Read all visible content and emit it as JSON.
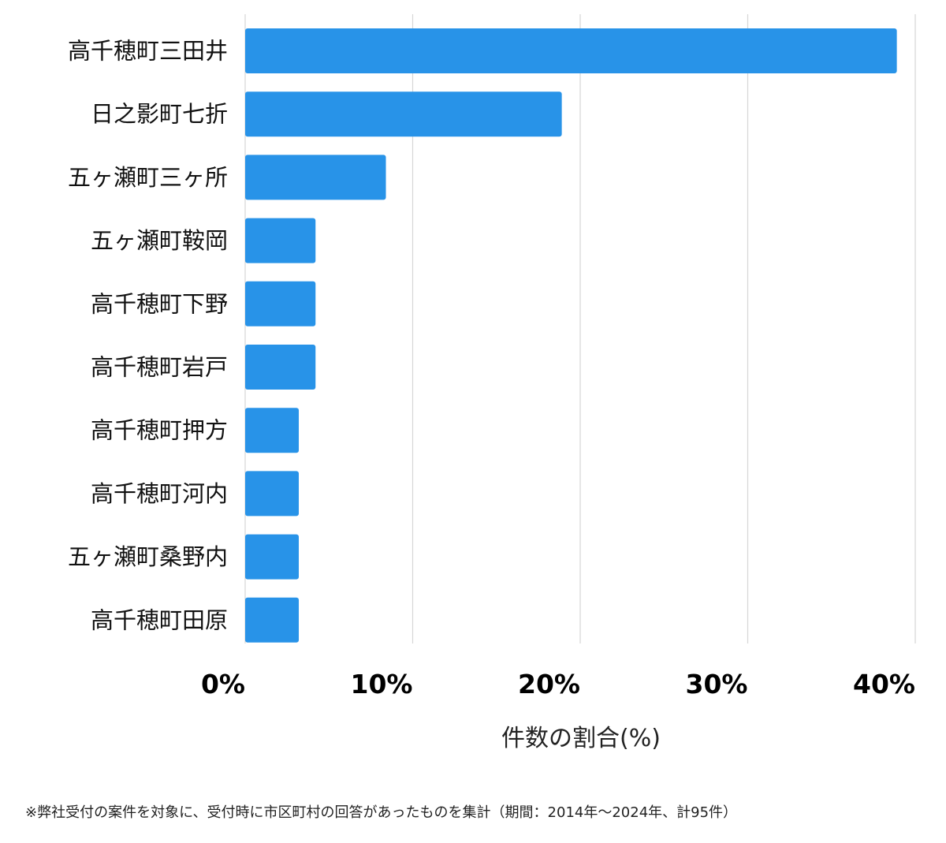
{
  "colors": {
    "bar": "#2893e8",
    "grid": "#d6d6d6",
    "text": "#111111"
  },
  "chart_data": {
    "type": "bar",
    "orientation": "horizontal",
    "categories": [
      "高千穂町三田井",
      "日之影町七折",
      "五ヶ瀬町三ヶ所",
      "五ヶ瀬町鞍岡",
      "高千穂町下野",
      "高千穂町岩戸",
      "高千穂町押方",
      "高千穂町河内",
      "五ヶ瀬町桑野内",
      "高千穂町田原"
    ],
    "values": [
      38.9,
      18.9,
      8.4,
      4.2,
      4.2,
      4.2,
      3.2,
      3.2,
      3.2,
      3.2
    ],
    "xlim": [
      0,
      40
    ],
    "xticks": [
      0,
      10,
      20,
      30,
      40
    ],
    "xtick_labels": [
      "0%",
      "10%",
      "20%",
      "30%",
      "40%"
    ],
    "xlabel": "件数の割合(%)",
    "title": "",
    "grid": "vertical"
  },
  "footnote": "※弊社受付の案件を対象に、受付時に市区町村の回答があったものを集計（期間：2014年～2024年、計95件）"
}
